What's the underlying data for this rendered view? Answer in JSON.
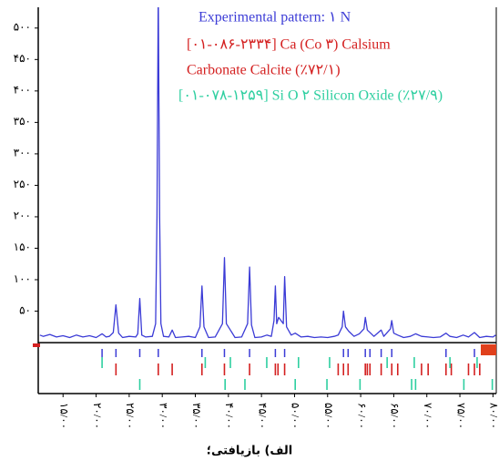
{
  "chart_data": {
    "type": "line",
    "caption": "الف) بازیافتی؛",
    "xlim": [
      11.25,
      80.5
    ],
    "ylim": [
      -81,
      533
    ],
    "xticks": [
      {
        "value": 15,
        "label": "۱۵/۰۰"
      },
      {
        "value": 20,
        "label": "۲۰/۰۰"
      },
      {
        "value": 25,
        "label": "۲۵/۰۰"
      },
      {
        "value": 30,
        "label": "۳۰/۰۰"
      },
      {
        "value": 35,
        "label": "۳۵/۰۰"
      },
      {
        "value": 40,
        "label": "۴۰/۰۰"
      },
      {
        "value": 45,
        "label": "۴۵/۰۰"
      },
      {
        "value": 50,
        "label": "۵۰/۰۰"
      },
      {
        "value": 55,
        "label": "۵۵/۰۰"
      },
      {
        "value": 60,
        "label": "۶۰/۰۰"
      },
      {
        "value": 65,
        "label": "۶۵/۰۰"
      },
      {
        "value": 70,
        "label": "۷۰/۰۰"
      },
      {
        "value": 75,
        "label": "۷۵/۰۰"
      },
      {
        "value": 80,
        "label": "۸۰/۰۰"
      }
    ],
    "yticks": [
      {
        "value": 50,
        "label": "۵۰"
      },
      {
        "value": 100,
        "label": "۱۰۰"
      },
      {
        "value": 150,
        "label": "۱۵۰"
      },
      {
        "value": 200,
        "label": "۲۰۰"
      },
      {
        "value": 250,
        "label": "۲۵۰"
      },
      {
        "value": 300,
        "label": "۳۰۰"
      },
      {
        "value": 350,
        "label": "۳۵۰"
      },
      {
        "value": 400,
        "label": "۴۰۰"
      },
      {
        "value": 450,
        "label": "۴۵۰"
      },
      {
        "value": 500,
        "label": "۵۰۰"
      }
    ],
    "series": [
      {
        "name": "Experimental pattern: ۱ N",
        "color": "#3b3bd6",
        "x": [
          11.5,
          12,
          13,
          14,
          15,
          16,
          17,
          18,
          19,
          20,
          20.9,
          21.5,
          22,
          22.6,
          23.0,
          23.4,
          24,
          25,
          26,
          26.3,
          26.6,
          26.9,
          27.5,
          28.5,
          29.0,
          29.2,
          29.4,
          29.6,
          29.8,
          30.2,
          31,
          31.5,
          32,
          33,
          34,
          35,
          35.7,
          36.0,
          36.3,
          37,
          38,
          39.1,
          39.4,
          39.7,
          40.3,
          41,
          42,
          42.9,
          43.2,
          43.5,
          44,
          45,
          45.8,
          46.5,
          46.9,
          47.1,
          47.3,
          47.6,
          48.3,
          48.5,
          48.8,
          49.5,
          50.1,
          51,
          52,
          53,
          54,
          55,
          56,
          56.6,
          57.2,
          57.4,
          57.7,
          58.2,
          59,
          59.8,
          60.5,
          60.7,
          61,
          61.5,
          62,
          63.1,
          63.5,
          64.5,
          64.7,
          65,
          65.6,
          66.5,
          67.5,
          68.3,
          69.2,
          70.2,
          71,
          72,
          72.9,
          73.5,
          74.5,
          75.5,
          76.3,
          77.2,
          78,
          79,
          80,
          80.4
        ],
        "values": [
          12,
          10,
          13,
          9,
          11,
          8,
          12,
          9,
          11,
          8,
          14,
          9,
          10,
          16,
          60,
          15,
          8,
          10,
          9,
          14,
          70,
          12,
          9,
          10,
          30,
          200,
          560,
          200,
          30,
          10,
          9,
          20,
          8,
          9,
          10,
          8,
          25,
          90,
          25,
          8,
          9,
          30,
          135,
          30,
          20,
          8,
          9,
          30,
          120,
          28,
          8,
          9,
          12,
          10,
          35,
          90,
          30,
          40,
          30,
          105,
          25,
          12,
          15,
          9,
          10,
          8,
          9,
          8,
          10,
          12,
          25,
          50,
          25,
          18,
          10,
          14,
          22,
          40,
          20,
          15,
          10,
          20,
          10,
          22,
          35,
          15,
          12,
          8,
          10,
          14,
          10,
          9,
          8,
          9,
          15,
          10,
          8,
          12,
          9,
          16,
          8,
          10,
          9,
          12
        ],
        "peak_positions": [
          20.9,
          23.0,
          26.6,
          29.4,
          36.0,
          39.4,
          43.2,
          47.1,
          48.5,
          57.4,
          58.1,
          60.7,
          61.4,
          63.1,
          64.7,
          72.9,
          77.2
        ]
      }
    ],
    "reference_patterns": [
      {
        "name": [
          "[۰۱-۰۸۶-۲۳۳۴]  Ca (Co ۳) Calsium",
          "Carbonate Calcite (٪۷۲/۱)"
        ],
        "color": "#d42020",
        "positions": [
          23.0,
          29.4,
          31.5,
          36.0,
          39.4,
          43.2,
          47.1,
          47.5,
          48.5,
          56.6,
          57.4,
          58.1,
          60.7,
          61.0,
          61.4,
          63.1,
          64.7,
          65.6,
          69.2,
          70.2,
          72.9,
          73.7,
          76.3,
          77.2,
          78.0
        ]
      },
      {
        "name": [
          "[۰۱-۰۷۸-۱۲۵۹] Si  O ۲  Silicon Oxide (٪۲۷/۹)"
        ],
        "color": "#2ecfa0",
        "positions": [
          20.9,
          26.6,
          36.5,
          39.5,
          40.3,
          42.5,
          45.8,
          50.1,
          50.6,
          54.9,
          55.3,
          59.9,
          64.0,
          67.7,
          68.1,
          68.3,
          73.5,
          75.6,
          77.6,
          79.9
        ]
      }
    ]
  }
}
